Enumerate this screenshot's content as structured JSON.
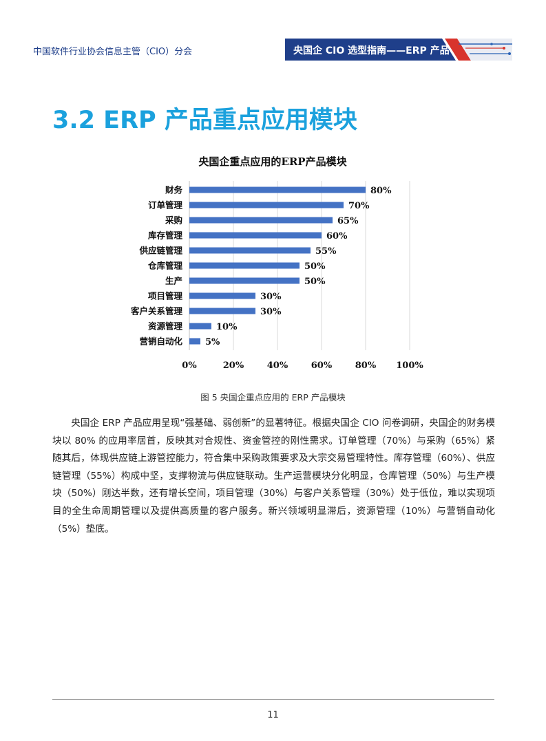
{
  "header": {
    "organization": "中国软件行业协会信息主管（CIO）分会",
    "banner_title": "央国企 CIO 选型指南——ERP 产品"
  },
  "section": {
    "title": "3.2 ERP 产品重点应用模块"
  },
  "colors": {
    "accent_title": "#1ba1dd",
    "banner_navy": "#1f3f8a",
    "banner_red": "#d8342c",
    "bar_blue": "#4472c4"
  },
  "chart_data": {
    "type": "bar",
    "orientation": "horizontal",
    "title": "央国企重点应用的ERP产品模块",
    "categories": [
      "财务",
      "订单管理",
      "采购",
      "库存管理",
      "供应链管理",
      "仓库管理",
      "生产",
      "项目管理",
      "客户关系管理",
      "资源管理",
      "营销自动化"
    ],
    "values": [
      80,
      70,
      65,
      60,
      55,
      50,
      50,
      30,
      30,
      10,
      5
    ],
    "value_labels": [
      "80%",
      "70%",
      "65%",
      "60%",
      "55%",
      "50%",
      "50%",
      "30%",
      "30%",
      "10%",
      "5%"
    ],
    "xlim": [
      0,
      100
    ],
    "x_ticks": [
      "0%",
      "20%",
      "40%",
      "60%",
      "80%",
      "100%"
    ],
    "x_tick_values": [
      0,
      20,
      40,
      60,
      80,
      100
    ],
    "grid": true,
    "legend": "none"
  },
  "figure": {
    "caption": "图 5 央国企重点应用的 ERP 产品模块"
  },
  "body": {
    "paragraph": "央国企 ERP 产品应用呈现“强基础、弱创新”的显著特征。根据央国企 CIO 问卷调研，央国企的财务模块以 80% 的应用率居首，反映其对合规性、资金管控的刚性需求。订单管理（70%）与采购（65%）紧随其后，体现供应链上游管控能力，符合集中采购政策要求及大宗交易管理特性。库存管理（60%）、供应链管理（55%）构成中坚，支撑物流与供应链联动。生产运营模块分化明显，仓库管理（50%）与生产模块（50%）刚达半数，还有增长空间，项目管理（30%）与客户关系管理（30%）处于低位，难以实现项目的全生命周期管理以及提供高质量的客户服务。新兴领域明显滞后，资源管理（10%）与营销自动化（5%）垫底。"
  },
  "footer": {
    "page_number": "11"
  }
}
